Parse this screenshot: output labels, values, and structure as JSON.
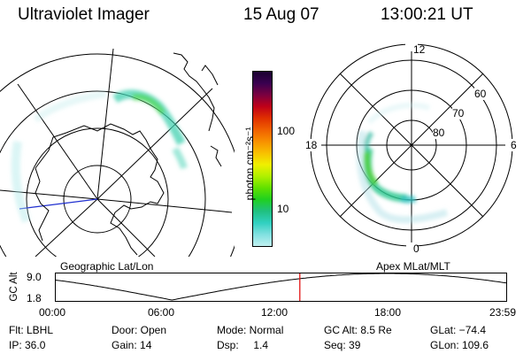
{
  "header": {
    "instrument": "Ultraviolet Imager",
    "date": "15 Aug 07",
    "time": "13:00:21 UT"
  },
  "left_map": {
    "label": "Geographic Lat/Lon"
  },
  "right_map": {
    "label": "Apex MLat/MLT",
    "mlt_labels": [
      "12",
      "18",
      "6",
      "0"
    ],
    "lat_labels": [
      "60",
      "70",
      "80"
    ]
  },
  "colorbar": {
    "unit_label": "photon cm⁻²s⁻¹",
    "ticks": [
      "100",
      "10"
    ],
    "colors": [
      "#1a0030",
      "#3a0050",
      "#7a0040",
      "#c00018",
      "#e03000",
      "#f06000",
      "#f89000",
      "#f8c000",
      "#f0f000",
      "#b0f000",
      "#60e000",
      "#20d020",
      "#20c080",
      "#30d0c0",
      "#80e0e0",
      "#c0f0f0"
    ]
  },
  "altitude_plot": {
    "ylabel": "GC Alt",
    "yticks": [
      "9.0",
      "1.8"
    ],
    "xticks": [
      "00:00",
      "06:00",
      "12:00",
      "18:00",
      "23:59"
    ],
    "marker_time_hours": 13.0
  },
  "info": {
    "flt": "Flt: LBHL",
    "ip": "IP: 36.0",
    "door": "Door: Open",
    "gain": "Gain: 14",
    "mode": "Mode: Normal",
    "dsp": "Dsp:     1.4",
    "gcalt": "GC Alt: 8.5 Re",
    "seq": "Seq: 39",
    "glat": "GLat: −74.4",
    "glon": "GLon: 109.6"
  }
}
